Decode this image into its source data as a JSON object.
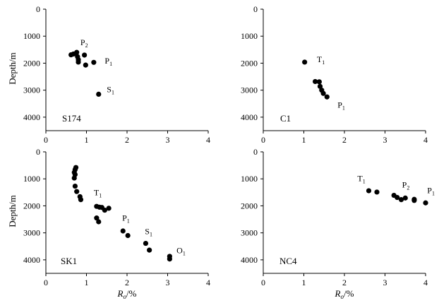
{
  "chart_data": [
    {
      "type": "scatter",
      "well": "S174",
      "xlabel": "",
      "ylabel": "Depth/m",
      "xlim": [
        0,
        4
      ],
      "ylim": [
        0,
        4500
      ],
      "y_inverted": true,
      "xticks": [
        "0",
        "1",
        "2",
        "3",
        "4"
      ],
      "yticks": [
        "0",
        "1000",
        "2000",
        "3000",
        "4000"
      ],
      "points": [
        {
          "x": 0.62,
          "y": 1690
        },
        {
          "x": 0.68,
          "y": 1660
        },
        {
          "x": 0.76,
          "y": 1600
        },
        {
          "x": 0.78,
          "y": 1760
        },
        {
          "x": 0.8,
          "y": 1870
        },
        {
          "x": 0.8,
          "y": 1960
        },
        {
          "x": 0.95,
          "y": 1700
        },
        {
          "x": 0.98,
          "y": 2070
        },
        {
          "x": 1.18,
          "y": 1970
        },
        {
          "x": 1.3,
          "y": 3150
        }
      ],
      "annotations": [
        {
          "base": "P",
          "sub": "2",
          "x": 0.85,
          "y": 1340
        },
        {
          "base": "P",
          "sub": "1",
          "x": 1.45,
          "y": 2020
        },
        {
          "base": "S",
          "sub": "1",
          "x": 1.5,
          "y": 3070
        }
      ]
    },
    {
      "type": "scatter",
      "well": "C1",
      "xlabel": "",
      "ylabel": "",
      "xlim": [
        0,
        4
      ],
      "ylim": [
        0,
        4500
      ],
      "y_inverted": true,
      "xticks": [
        "0",
        "1",
        "2",
        "3",
        "4"
      ],
      "yticks": [
        "0",
        "1000",
        "2000",
        "3000",
        "4000"
      ],
      "points": [
        {
          "x": 1.02,
          "y": 1960
        },
        {
          "x": 1.28,
          "y": 2680
        },
        {
          "x": 1.38,
          "y": 2690
        },
        {
          "x": 1.4,
          "y": 2860
        },
        {
          "x": 1.44,
          "y": 3000
        },
        {
          "x": 1.48,
          "y": 3120
        },
        {
          "x": 1.57,
          "y": 3250
        }
      ],
      "annotations": [
        {
          "base": "T",
          "sub": "1",
          "x": 1.32,
          "y": 1960
        },
        {
          "base": "P",
          "sub": "1",
          "x": 1.83,
          "y": 3650
        }
      ]
    },
    {
      "type": "scatter",
      "well": "SK1",
      "xlabel": "Ro/%",
      "ylabel": "Depth/m",
      "xlim": [
        0,
        4
      ],
      "ylim": [
        0,
        4500
      ],
      "y_inverted": true,
      "xticks": [
        "0",
        "1",
        "2",
        "3",
        "4"
      ],
      "yticks": [
        "0",
        "1000",
        "2000",
        "3000",
        "4000"
      ],
      "points": [
        {
          "x": 0.74,
          "y": 580
        },
        {
          "x": 0.72,
          "y": 660
        },
        {
          "x": 0.7,
          "y": 760
        },
        {
          "x": 0.72,
          "y": 840
        },
        {
          "x": 0.7,
          "y": 970
        },
        {
          "x": 0.72,
          "y": 1270
        },
        {
          "x": 0.76,
          "y": 1470
        },
        {
          "x": 0.84,
          "y": 1660
        },
        {
          "x": 0.86,
          "y": 1770
        },
        {
          "x": 1.25,
          "y": 2020
        },
        {
          "x": 1.32,
          "y": 2050
        },
        {
          "x": 1.38,
          "y": 2060
        },
        {
          "x": 1.45,
          "y": 2160
        },
        {
          "x": 1.55,
          "y": 2090
        },
        {
          "x": 1.25,
          "y": 2450
        },
        {
          "x": 1.3,
          "y": 2590
        },
        {
          "x": 1.9,
          "y": 2930
        },
        {
          "x": 2.02,
          "y": 3100
        },
        {
          "x": 2.46,
          "y": 3390
        },
        {
          "x": 2.55,
          "y": 3640
        },
        {
          "x": 3.05,
          "y": 3870
        },
        {
          "x": 3.05,
          "y": 3970
        }
      ],
      "annotations": [
        {
          "base": "T",
          "sub": "1",
          "x": 1.18,
          "y": 1610
        },
        {
          "base": "P",
          "sub": "1",
          "x": 1.88,
          "y": 2550
        },
        {
          "base": "S",
          "sub": "1",
          "x": 2.44,
          "y": 3050
        },
        {
          "base": "O",
          "sub": "1",
          "x": 3.22,
          "y": 3760
        }
      ]
    },
    {
      "type": "scatter",
      "well": "NC4",
      "xlabel": "Ro/%",
      "ylabel": "",
      "xlim": [
        0,
        4
      ],
      "ylim": [
        0,
        4500
      ],
      "y_inverted": true,
      "xticks": [
        "0",
        "1",
        "2",
        "3",
        "4"
      ],
      "yticks": [
        "0",
        "1000",
        "2000",
        "3000",
        "4000"
      ],
      "points": [
        {
          "x": 2.6,
          "y": 1440
        },
        {
          "x": 2.8,
          "y": 1490
        },
        {
          "x": 3.22,
          "y": 1610
        },
        {
          "x": 3.3,
          "y": 1690
        },
        {
          "x": 3.4,
          "y": 1770
        },
        {
          "x": 3.5,
          "y": 1710
        },
        {
          "x": 3.72,
          "y": 1760
        },
        {
          "x": 3.72,
          "y": 1800
        },
        {
          "x": 4.0,
          "y": 1890
        }
      ],
      "annotations": [
        {
          "base": "T",
          "sub": "1",
          "x": 2.32,
          "y": 1080
        },
        {
          "base": "P",
          "sub": "2",
          "x": 3.42,
          "y": 1320
        },
        {
          "base": "P",
          "sub": "1",
          "x": 4.04,
          "y": 1530
        }
      ]
    }
  ]
}
